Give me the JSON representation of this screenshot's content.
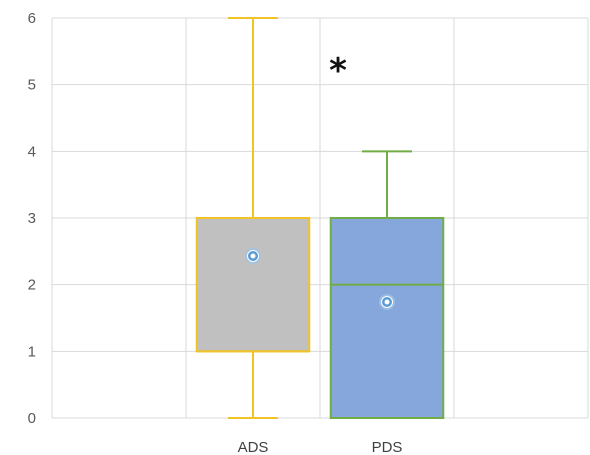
{
  "chart_data": {
    "type": "box",
    "title": "",
    "xlabel": "",
    "ylabel": "",
    "ylim": [
      0,
      6
    ],
    "yticks": [
      0,
      1,
      2,
      3,
      4,
      5,
      6
    ],
    "ytick_labels": [
      "0",
      "1",
      "2",
      "3",
      "4",
      "5",
      "6"
    ],
    "grid": true,
    "legend": "none",
    "categories": [
      "ADS",
      "PDS"
    ],
    "boxes": [
      {
        "category": "ADS",
        "min": 0,
        "q1": 1,
        "median": 1,
        "q3": 3,
        "max": 6,
        "mean": 2.43,
        "fill": "#c0c0c0",
        "stroke": "#f0c429"
      },
      {
        "category": "PDS",
        "min": 0,
        "q1": 0,
        "median": 2,
        "q3": 3,
        "max": 4,
        "mean": 1.74,
        "fill": "#86a7dc",
        "stroke": "#70ad47"
      }
    ],
    "annotation": {
      "text": "*"
    }
  }
}
